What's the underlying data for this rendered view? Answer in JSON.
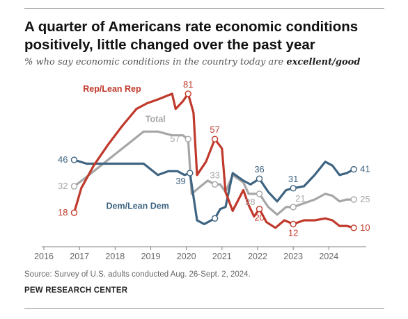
{
  "title": "A quarter of Americans rate economic conditions positively, little changed over the past year",
  "subtitle_prefix": "% who say economic conditions in the country today are ",
  "subtitle_emphasis": "excellent/good",
  "source": "Source: Survey of U.S. adults conducted Aug. 26-Sept. 2, 2024.",
  "credit": "PEW RESEARCH CENTER",
  "colors": {
    "rep": "#c0392b",
    "total": "#a6a6a6",
    "dem": "#3e6481",
    "axis": "#7f7f7f",
    "text": "#555555"
  },
  "chart_data": {
    "type": "line",
    "title": "A quarter of Americans rate economic conditions positively, little changed over the past year",
    "xlim": [
      2016,
      2025
    ],
    "ylim": [
      0,
      90
    ],
    "x_ticks": [
      "2016",
      "2017",
      "2018",
      "2019",
      "2020",
      "2021",
      "2022",
      "2023",
      "2024"
    ],
    "grid": false,
    "series": [
      {
        "name": "Rep/Lean Rep",
        "color": "#c0392b",
        "points": [
          [
            2016.85,
            18
          ],
          [
            2017.05,
            31
          ],
          [
            2017.4,
            43
          ],
          [
            2017.8,
            54
          ],
          [
            2018.2,
            64
          ],
          [
            2018.6,
            73
          ],
          [
            2018.9,
            76
          ],
          [
            2019.2,
            78
          ],
          [
            2019.6,
            81
          ],
          [
            2019.7,
            73
          ],
          [
            2019.9,
            77
          ],
          [
            2020.05,
            81
          ],
          [
            2020.2,
            71
          ],
          [
            2020.3,
            38
          ],
          [
            2020.55,
            45
          ],
          [
            2020.8,
            57
          ],
          [
            2021.0,
            52
          ],
          [
            2021.1,
            29
          ],
          [
            2021.3,
            19
          ],
          [
            2021.6,
            30
          ],
          [
            2021.75,
            22
          ],
          [
            2021.9,
            16
          ],
          [
            2022.05,
            20
          ],
          [
            2022.25,
            13
          ],
          [
            2022.5,
            10
          ],
          [
            2022.75,
            14
          ],
          [
            2023.0,
            12
          ],
          [
            2023.3,
            14
          ],
          [
            2023.6,
            14
          ],
          [
            2023.9,
            15
          ],
          [
            2024.1,
            14
          ],
          [
            2024.3,
            11
          ],
          [
            2024.5,
            11
          ],
          [
            2024.7,
            10
          ]
        ],
        "labels": [
          {
            "value": "18",
            "x": 2016.85,
            "y": 18,
            "pos": "left"
          },
          {
            "value": "81",
            "x": 2020.05,
            "y": 81,
            "pos": "above"
          },
          {
            "value": "57",
            "x": 2020.8,
            "y": 57,
            "pos": "above"
          },
          {
            "value": "20",
            "x": 2022.05,
            "y": 20,
            "pos": "below"
          },
          {
            "value": "12",
            "x": 2023.0,
            "y": 12,
            "pos": "below"
          },
          {
            "value": "10",
            "x": 2024.7,
            "y": 10,
            "pos": "right"
          }
        ]
      },
      {
        "name": "Total",
        "color": "#a6a6a6",
        "points": [
          [
            2016.85,
            32
          ],
          [
            2017.2,
            37
          ],
          [
            2017.6,
            43
          ],
          [
            2018.0,
            49
          ],
          [
            2018.4,
            55
          ],
          [
            2018.8,
            61
          ],
          [
            2019.2,
            61
          ],
          [
            2019.6,
            59
          ],
          [
            2019.9,
            59
          ],
          [
            2020.05,
            57
          ],
          [
            2020.15,
            28
          ],
          [
            2020.4,
            32
          ],
          [
            2020.6,
            35
          ],
          [
            2020.8,
            33
          ],
          [
            2020.95,
            33
          ],
          [
            2021.1,
            29
          ],
          [
            2021.3,
            38
          ],
          [
            2021.6,
            34
          ],
          [
            2021.75,
            28
          ],
          [
            2022.05,
            28
          ],
          [
            2022.3,
            21
          ],
          [
            2022.55,
            17
          ],
          [
            2022.8,
            21
          ],
          [
            2023.0,
            21
          ],
          [
            2023.3,
            23
          ],
          [
            2023.6,
            25
          ],
          [
            2023.9,
            28
          ],
          [
            2024.1,
            27
          ],
          [
            2024.3,
            24
          ],
          [
            2024.5,
            25
          ],
          [
            2024.7,
            25
          ]
        ],
        "labels": [
          {
            "value": "32",
            "x": 2016.85,
            "y": 32,
            "pos": "left"
          },
          {
            "value": "57",
            "x": 2020.0,
            "y": 57,
            "pos": "left"
          },
          {
            "value": "33",
            "x": 2020.8,
            "y": 33,
            "pos": "above"
          },
          {
            "value": "28",
            "x": 2022.05,
            "y": 28,
            "pos": "belowleft"
          },
          {
            "value": "21",
            "x": 2023.0,
            "y": 21,
            "pos": "aboveright"
          },
          {
            "value": "25",
            "x": 2024.7,
            "y": 25,
            "pos": "right"
          }
        ]
      },
      {
        "name": "Dem/Lean Dem",
        "color": "#3e6481",
        "points": [
          [
            2016.85,
            46
          ],
          [
            2017.2,
            44
          ],
          [
            2017.6,
            44
          ],
          [
            2018.0,
            44
          ],
          [
            2018.5,
            44
          ],
          [
            2018.8,
            44
          ],
          [
            2019.2,
            38
          ],
          [
            2019.5,
            40
          ],
          [
            2019.75,
            40
          ],
          [
            2019.95,
            38
          ],
          [
            2020.1,
            39
          ],
          [
            2020.3,
            14
          ],
          [
            2020.5,
            12
          ],
          [
            2020.8,
            15
          ],
          [
            2020.95,
            20
          ],
          [
            2021.1,
            21
          ],
          [
            2021.3,
            39
          ],
          [
            2021.6,
            35
          ],
          [
            2021.8,
            33
          ],
          [
            2022.05,
            36
          ],
          [
            2022.3,
            29
          ],
          [
            2022.55,
            24
          ],
          [
            2022.8,
            30
          ],
          [
            2023.0,
            31
          ],
          [
            2023.3,
            32
          ],
          [
            2023.6,
            38
          ],
          [
            2023.9,
            45
          ],
          [
            2024.1,
            43
          ],
          [
            2024.3,
            38
          ],
          [
            2024.5,
            39
          ],
          [
            2024.7,
            41
          ]
        ],
        "labels": [
          {
            "value": "46",
            "x": 2016.85,
            "y": 46,
            "pos": "left"
          },
          {
            "value": "39",
            "x": 2020.1,
            "y": 39,
            "pos": "belowleft"
          },
          {
            "value": "36",
            "x": 2022.05,
            "y": 36,
            "pos": "above"
          },
          {
            "value": "31",
            "x": 2023.0,
            "y": 31,
            "pos": "above"
          },
          {
            "value": "41",
            "x": 2024.7,
            "y": 41,
            "pos": "right"
          }
        ]
      }
    ],
    "series_labels": [
      {
        "name": "Rep/Lean Rep",
        "x": 2017.1,
        "y": 82
      },
      {
        "name": "Total",
        "x": 2018.85,
        "y": 66
      },
      {
        "name": "Dem/Lean Dem",
        "x": 2017.75,
        "y": 20
      }
    ],
    "markers": {
      "Rep/Lean Rep": [
        [
          2016.85,
          18
        ],
        [
          2020.05,
          81
        ],
        [
          2020.8,
          57
        ],
        [
          2022.05,
          20
        ],
        [
          2023.0,
          12
        ],
        [
          2024.7,
          10
        ]
      ],
      "Total": [
        [
          2016.85,
          32
        ],
        [
          2020.05,
          57
        ],
        [
          2020.8,
          33
        ],
        [
          2022.05,
          28
        ],
        [
          2023.0,
          21
        ],
        [
          2024.7,
          25
        ]
      ],
      "Dem/Lean Dem": [
        [
          2016.85,
          46
        ],
        [
          2020.1,
          39
        ],
        [
          2020.8,
          15
        ],
        [
          2022.05,
          36
        ],
        [
          2023.0,
          31
        ],
        [
          2024.7,
          41
        ]
      ]
    }
  }
}
